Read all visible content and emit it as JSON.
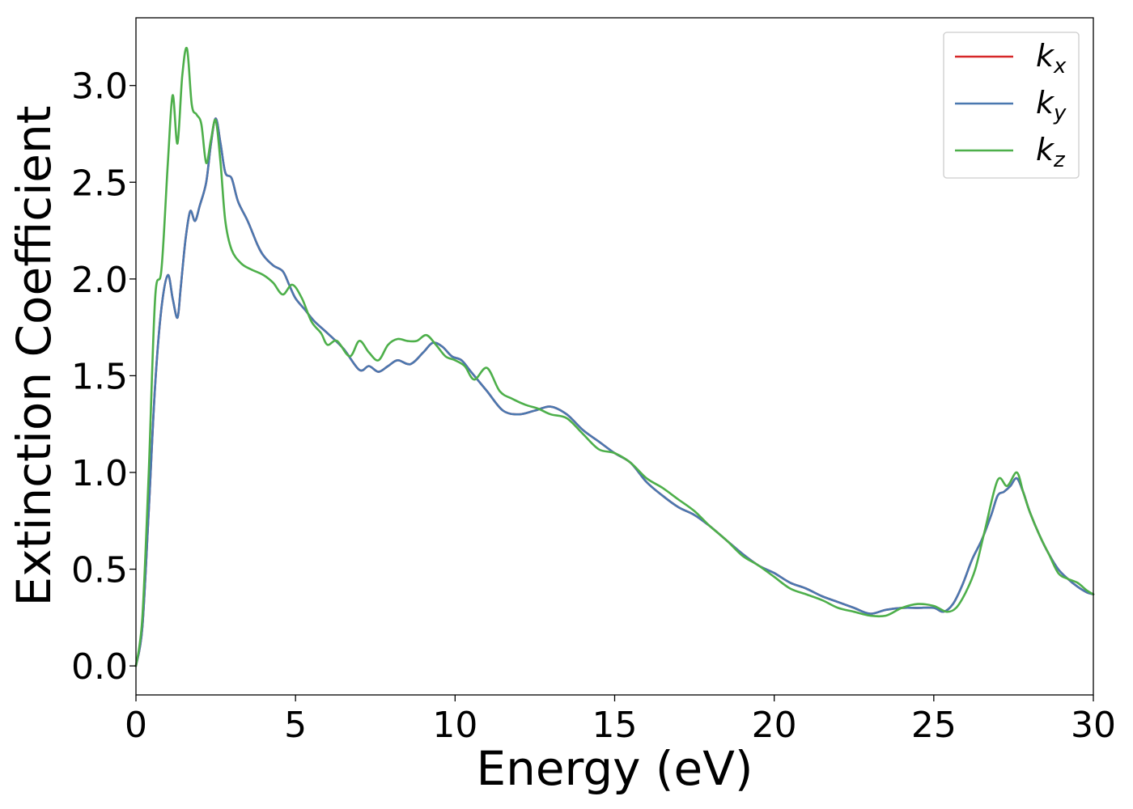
{
  "chart_data": {
    "type": "line",
    "title": "",
    "xlabel": "Energy (eV)",
    "ylabel": "Extinction Coefficient",
    "xlim": [
      0,
      30
    ],
    "ylim": [
      -0.15,
      3.35
    ],
    "xticks": [
      0,
      5,
      10,
      15,
      20,
      25,
      30
    ],
    "xtick_labels": [
      "0",
      "5",
      "10",
      "15",
      "20",
      "25",
      "30"
    ],
    "yticks": [
      0.0,
      0.5,
      1.0,
      1.5,
      2.0,
      2.5,
      3.0
    ],
    "ytick_labels": [
      "0.0",
      "0.5",
      "1.0",
      "1.5",
      "2.0",
      "2.5",
      "3.0"
    ],
    "grid": false,
    "legend_position": "top-right",
    "series": [
      {
        "name": "k",
        "subscript": "x",
        "color": "#d62728",
        "x": [
          0,
          0.2,
          0.4,
          0.6,
          0.8,
          1.0,
          1.15,
          1.3,
          1.4,
          1.55,
          1.7,
          1.85,
          2.0,
          2.2,
          2.35,
          2.5,
          2.65,
          2.8,
          3.0,
          3.2,
          3.5,
          3.8,
          4.0,
          4.3,
          4.6,
          4.8,
          5.0,
          5.3,
          5.6,
          6.0,
          6.5,
          7.0,
          7.3,
          7.6,
          7.9,
          8.2,
          8.6,
          9.0,
          9.3,
          9.6,
          9.9,
          10.2,
          10.5,
          11.0,
          11.5,
          12.0,
          12.5,
          13.0,
          13.5,
          14.0,
          14.5,
          15.0,
          15.5,
          16.0,
          16.5,
          17.0,
          17.5,
          18.0,
          18.5,
          19.0,
          19.5,
          20.0,
          20.5,
          21.0,
          21.5,
          22.0,
          22.5,
          23.0,
          23.5,
          24.0,
          24.5,
          25.0,
          25.3,
          25.6,
          25.9,
          26.2,
          26.5,
          26.8,
          27.0,
          27.2,
          27.4,
          27.6,
          27.8,
          28.0,
          28.3,
          28.6,
          28.9,
          29.2,
          29.5,
          29.8,
          30.0
        ],
        "y": [
          0.0,
          0.2,
          0.8,
          1.45,
          1.85,
          2.02,
          1.9,
          1.8,
          1.95,
          2.2,
          2.35,
          2.3,
          2.38,
          2.5,
          2.7,
          2.83,
          2.7,
          2.55,
          2.52,
          2.4,
          2.3,
          2.18,
          2.12,
          2.07,
          2.04,
          1.97,
          1.9,
          1.84,
          1.78,
          1.72,
          1.64,
          1.53,
          1.55,
          1.52,
          1.55,
          1.58,
          1.56,
          1.62,
          1.67,
          1.65,
          1.6,
          1.58,
          1.52,
          1.42,
          1.32,
          1.3,
          1.32,
          1.34,
          1.3,
          1.22,
          1.16,
          1.1,
          1.05,
          0.95,
          0.88,
          0.82,
          0.78,
          0.72,
          0.65,
          0.58,
          0.52,
          0.48,
          0.43,
          0.4,
          0.36,
          0.33,
          0.3,
          0.27,
          0.29,
          0.3,
          0.3,
          0.3,
          0.28,
          0.32,
          0.42,
          0.55,
          0.65,
          0.78,
          0.88,
          0.9,
          0.93,
          0.97,
          0.9,
          0.8,
          0.68,
          0.58,
          0.5,
          0.45,
          0.41,
          0.38,
          0.37
        ]
      },
      {
        "name": "k",
        "subscript": "y",
        "color": "#4a78b0",
        "x": [
          0,
          0.2,
          0.4,
          0.6,
          0.8,
          1.0,
          1.15,
          1.3,
          1.4,
          1.55,
          1.7,
          1.85,
          2.0,
          2.2,
          2.35,
          2.5,
          2.65,
          2.8,
          3.0,
          3.2,
          3.5,
          3.8,
          4.0,
          4.3,
          4.6,
          4.8,
          5.0,
          5.3,
          5.6,
          6.0,
          6.5,
          7.0,
          7.3,
          7.6,
          7.9,
          8.2,
          8.6,
          9.0,
          9.3,
          9.6,
          9.9,
          10.2,
          10.5,
          11.0,
          11.5,
          12.0,
          12.5,
          13.0,
          13.5,
          14.0,
          14.5,
          15.0,
          15.5,
          16.0,
          16.5,
          17.0,
          17.5,
          18.0,
          18.5,
          19.0,
          19.5,
          20.0,
          20.5,
          21.0,
          21.5,
          22.0,
          22.5,
          23.0,
          23.5,
          24.0,
          24.5,
          25.0,
          25.3,
          25.6,
          25.9,
          26.2,
          26.5,
          26.8,
          27.0,
          27.2,
          27.4,
          27.6,
          27.8,
          28.0,
          28.3,
          28.6,
          28.9,
          29.2,
          29.5,
          29.8,
          30.0
        ],
        "y": [
          0.0,
          0.2,
          0.8,
          1.45,
          1.85,
          2.02,
          1.9,
          1.8,
          1.95,
          2.2,
          2.35,
          2.3,
          2.38,
          2.5,
          2.7,
          2.83,
          2.7,
          2.55,
          2.52,
          2.4,
          2.3,
          2.18,
          2.12,
          2.07,
          2.04,
          1.97,
          1.9,
          1.84,
          1.78,
          1.72,
          1.64,
          1.53,
          1.55,
          1.52,
          1.55,
          1.58,
          1.56,
          1.62,
          1.67,
          1.65,
          1.6,
          1.58,
          1.52,
          1.42,
          1.32,
          1.3,
          1.32,
          1.34,
          1.3,
          1.22,
          1.16,
          1.1,
          1.05,
          0.95,
          0.88,
          0.82,
          0.78,
          0.72,
          0.65,
          0.58,
          0.52,
          0.48,
          0.43,
          0.4,
          0.36,
          0.33,
          0.3,
          0.27,
          0.29,
          0.3,
          0.3,
          0.3,
          0.28,
          0.32,
          0.42,
          0.55,
          0.65,
          0.78,
          0.88,
          0.9,
          0.93,
          0.97,
          0.9,
          0.8,
          0.68,
          0.58,
          0.5,
          0.45,
          0.41,
          0.38,
          0.37
        ]
      },
      {
        "name": "k",
        "subscript": "z",
        "color": "#4daf4a",
        "x": [
          0,
          0.2,
          0.4,
          0.6,
          0.8,
          1.0,
          1.15,
          1.3,
          1.45,
          1.6,
          1.75,
          1.9,
          2.05,
          2.2,
          2.35,
          2.5,
          2.65,
          2.8,
          3.0,
          3.3,
          3.6,
          4.0,
          4.3,
          4.6,
          4.9,
          5.2,
          5.5,
          5.8,
          6.0,
          6.3,
          6.7,
          7.0,
          7.3,
          7.6,
          7.9,
          8.2,
          8.5,
          8.8,
          9.1,
          9.4,
          9.7,
          10.0,
          10.3,
          10.6,
          11.0,
          11.4,
          11.8,
          12.2,
          12.6,
          13.0,
          13.5,
          14.0,
          14.5,
          15.0,
          15.5,
          16.0,
          16.5,
          17.0,
          17.5,
          18.0,
          18.5,
          19.0,
          19.5,
          20.0,
          20.5,
          21.0,
          21.5,
          22.0,
          22.5,
          23.0,
          23.5,
          24.0,
          24.5,
          25.0,
          25.4,
          25.7,
          26.0,
          26.3,
          26.6,
          27.0,
          27.3,
          27.6,
          27.8,
          28.0,
          28.3,
          28.6,
          28.9,
          29.2,
          29.5,
          29.8,
          30.0
        ],
        "y": [
          0.0,
          0.25,
          1.0,
          1.9,
          2.05,
          2.6,
          2.95,
          2.7,
          3.05,
          3.19,
          2.9,
          2.85,
          2.8,
          2.6,
          2.72,
          2.82,
          2.6,
          2.3,
          2.15,
          2.08,
          2.05,
          2.02,
          1.98,
          1.92,
          1.97,
          1.9,
          1.78,
          1.72,
          1.66,
          1.68,
          1.6,
          1.68,
          1.62,
          1.58,
          1.66,
          1.69,
          1.68,
          1.68,
          1.71,
          1.66,
          1.6,
          1.58,
          1.55,
          1.48,
          1.54,
          1.42,
          1.38,
          1.35,
          1.33,
          1.3,
          1.28,
          1.2,
          1.12,
          1.1,
          1.05,
          0.97,
          0.92,
          0.86,
          0.8,
          0.72,
          0.65,
          0.57,
          0.52,
          0.46,
          0.4,
          0.37,
          0.34,
          0.3,
          0.28,
          0.26,
          0.26,
          0.3,
          0.32,
          0.31,
          0.28,
          0.3,
          0.38,
          0.5,
          0.7,
          0.96,
          0.93,
          1.0,
          0.9,
          0.8,
          0.68,
          0.58,
          0.48,
          0.45,
          0.43,
          0.39,
          0.37
        ]
      }
    ]
  }
}
